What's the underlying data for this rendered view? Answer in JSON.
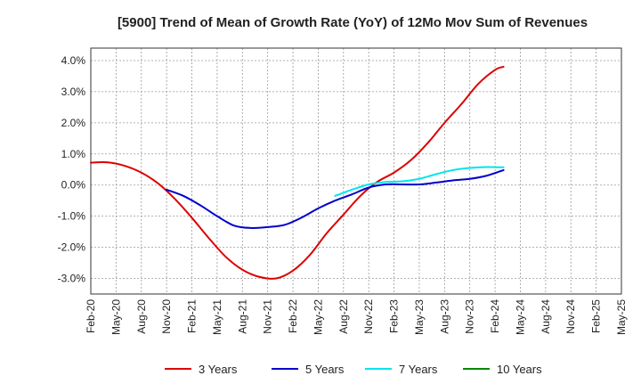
{
  "chart_data": {
    "type": "line",
    "title": "[5900]  Trend of Mean of Growth Rate (YoY) of 12Mo Mov Sum of Revenues",
    "xlabel": "",
    "ylabel": "",
    "ylim": [
      -3.5,
      4.4
    ],
    "yticks": [
      4.0,
      3.0,
      2.0,
      1.0,
      0.0,
      -1.0,
      -2.0,
      -3.0
    ],
    "ytick_labels": [
      "4.0%",
      "3.0%",
      "2.0%",
      "1.0%",
      "0.0%",
      "-1.0%",
      "-2.0%",
      "-3.0%"
    ],
    "x_tick_labels": [
      "Feb-20",
      "May-20",
      "Aug-20",
      "Nov-20",
      "Feb-21",
      "May-21",
      "Aug-21",
      "Nov-21",
      "Feb-22",
      "May-22",
      "Aug-22",
      "Nov-22",
      "Feb-23",
      "May-23",
      "Aug-23",
      "Nov-23",
      "Feb-24",
      "May-24",
      "Aug-24",
      "Nov-24",
      "Feb-25",
      "May-25"
    ],
    "grid": true,
    "legend_position": "bottom",
    "series": [
      {
        "name": "3 Years",
        "color": "#dd0000",
        "points": [
          [
            0,
            0.72
          ],
          [
            2,
            0.73
          ],
          [
            4,
            0.62
          ],
          [
            6,
            0.4
          ],
          [
            8,
            0.05
          ],
          [
            10,
            -0.45
          ],
          [
            12,
            -1.05
          ],
          [
            14,
            -1.7
          ],
          [
            16,
            -2.3
          ],
          [
            18,
            -2.72
          ],
          [
            20,
            -2.95
          ],
          [
            22,
            -3.0
          ],
          [
            24,
            -2.75
          ],
          [
            26,
            -2.25
          ],
          [
            28,
            -1.55
          ],
          [
            30,
            -0.95
          ],
          [
            32,
            -0.35
          ],
          [
            34,
            0.1
          ],
          [
            36,
            0.4
          ],
          [
            38,
            0.8
          ],
          [
            40,
            1.35
          ],
          [
            42,
            2.0
          ],
          [
            44,
            2.6
          ],
          [
            46,
            3.25
          ],
          [
            48,
            3.7
          ],
          [
            49,
            3.8
          ]
        ]
      },
      {
        "name": "5 Years",
        "color": "#0000cc",
        "points": [
          [
            9,
            -0.15
          ],
          [
            11,
            -0.35
          ],
          [
            13,
            -0.65
          ],
          [
            15,
            -1.0
          ],
          [
            17,
            -1.3
          ],
          [
            19,
            -1.38
          ],
          [
            21,
            -1.35
          ],
          [
            23,
            -1.28
          ],
          [
            25,
            -1.05
          ],
          [
            27,
            -0.75
          ],
          [
            29,
            -0.5
          ],
          [
            31,
            -0.3
          ],
          [
            33,
            -0.08
          ],
          [
            35,
            0.02
          ],
          [
            37,
            0.02
          ],
          [
            39,
            0.02
          ],
          [
            41,
            0.08
          ],
          [
            43,
            0.15
          ],
          [
            45,
            0.2
          ],
          [
            47,
            0.3
          ],
          [
            49,
            0.48
          ]
        ]
      },
      {
        "name": "7 Years",
        "color": "#00e5ee",
        "points": [
          [
            29,
            -0.35
          ],
          [
            31,
            -0.15
          ],
          [
            33,
            0.02
          ],
          [
            35,
            0.1
          ],
          [
            37,
            0.12
          ],
          [
            39,
            0.2
          ],
          [
            41,
            0.35
          ],
          [
            43,
            0.48
          ],
          [
            45,
            0.55
          ],
          [
            47,
            0.58
          ],
          [
            49,
            0.57
          ]
        ]
      },
      {
        "name": "10 Years",
        "color": "#008800",
        "points": []
      }
    ]
  }
}
